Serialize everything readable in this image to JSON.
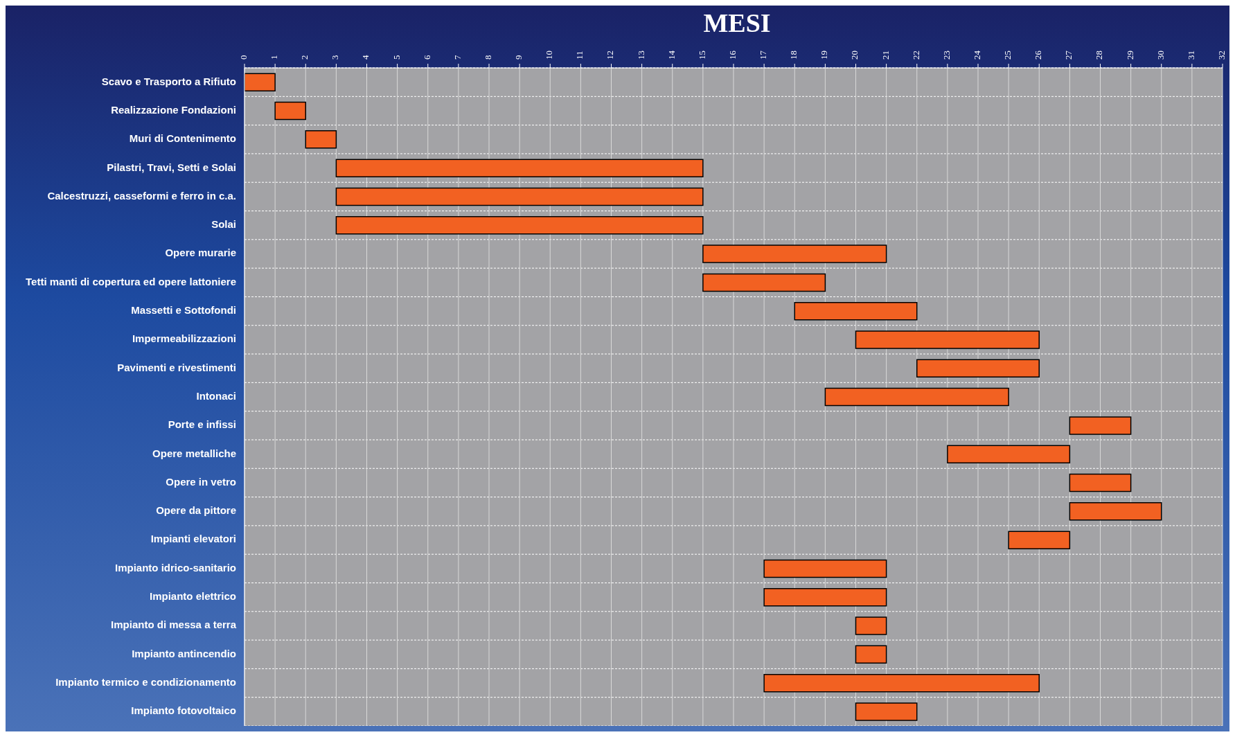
{
  "chart_data": {
    "type": "bar",
    "orientation": "horizontal",
    "title": "MESI",
    "categories": [
      "Scavo e Trasporto a Rifiuto",
      "Realizzazione Fondazioni",
      "Muri di Contenimento",
      "Pilastri, Travi, Setti e Solai",
      "Calcestruzzi, casseformi e ferro in c.a.",
      "Solai",
      "Opere murarie",
      "Tetti manti di copertura ed opere lattoniere",
      "Massetti e Sottofondi",
      "Impermeabilizzazioni",
      "Pavimenti e rivestimenti",
      "Intonaci",
      "Porte e infissi",
      "Opere metalliche",
      "Opere in vetro",
      "Opere da pittore",
      "Impianti elevatori",
      "Impianto idrico-sanitario",
      "Impianto elettrico",
      "Impianto di messa a terra",
      "Impianto antincendio",
      "Impianto termico e condizionamento",
      "Impianto fotovoltaico"
    ],
    "base": [
      0,
      1,
      2,
      3,
      3,
      3,
      15,
      15,
      18,
      20,
      22,
      19,
      27,
      23,
      27,
      27,
      25,
      17,
      17,
      20,
      20,
      17,
      20
    ],
    "values": [
      1,
      1,
      1,
      12,
      12,
      12,
      6,
      4,
      4,
      6,
      4,
      6,
      2,
      4,
      2,
      3,
      2,
      4,
      4,
      1,
      1,
      9,
      2
    ],
    "color": "#f26122",
    "xlim": [
      0,
      32
    ],
    "xticks": [
      0,
      1,
      2,
      3,
      4,
      5,
      6,
      7,
      8,
      9,
      10,
      11,
      12,
      13,
      14,
      15,
      16,
      17,
      18,
      19,
      20,
      21,
      22,
      23,
      24,
      25,
      26,
      27,
      28,
      29,
      30,
      31,
      32
    ],
    "grid": true
  }
}
